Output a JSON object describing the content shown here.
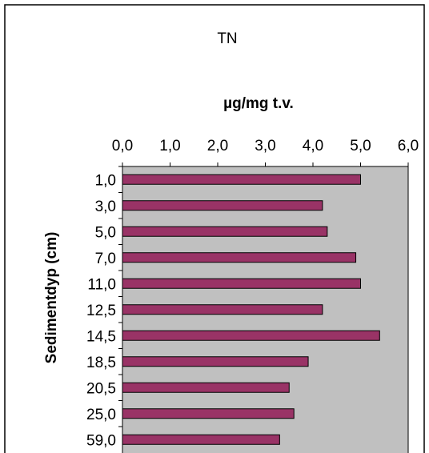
{
  "chart_data": {
    "type": "bar",
    "orientation": "horizontal",
    "title": "TN",
    "xlabel": "µg/mg t.v.",
    "ylabel": "Sedimentdyp (cm)",
    "categories": [
      "1,0",
      "3,0",
      "5,0",
      "7,0",
      "11,0",
      "12,5",
      "14,5",
      "18,5",
      "20,5",
      "25,0",
      "59,0"
    ],
    "values": [
      5.0,
      4.2,
      4.3,
      4.9,
      5.0,
      4.2,
      5.4,
      3.9,
      3.5,
      3.6,
      3.3
    ],
    "xlim": [
      0,
      6
    ],
    "xticks": [
      "0,0",
      "1,0",
      "2,0",
      "3,0",
      "4,0",
      "5,0",
      "6,0"
    ],
    "x_axis_position": "top",
    "grid": false,
    "colors": {
      "bar": "#993366",
      "plot_background": "#c0c0c0",
      "background": "#ffffff"
    }
  }
}
